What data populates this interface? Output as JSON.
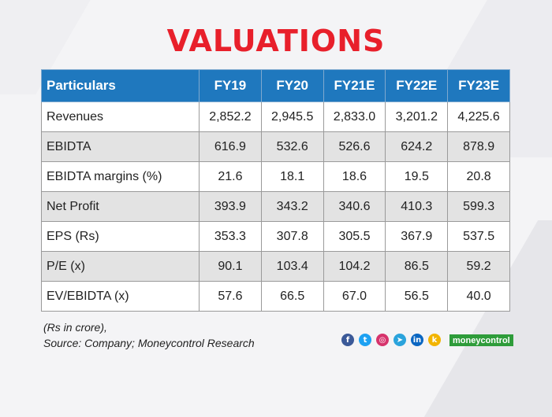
{
  "title": "VALUATIONS",
  "table": {
    "headers": [
      "Particulars",
      "FY19",
      "FY20",
      "FY21E",
      "FY22E",
      "FY23E"
    ],
    "rows": [
      [
        "Revenues",
        "2,852.2",
        "2,945.5",
        "2,833.0",
        "3,201.2",
        "4,225.6"
      ],
      [
        "EBIDTA",
        "616.9",
        "532.6",
        "526.6",
        "624.2",
        "878.9"
      ],
      [
        "EBIDTA margins (%)",
        "21.6",
        "18.1",
        "18.6",
        "19.5",
        "20.8"
      ],
      [
        "Net Profit",
        "393.9",
        "343.2",
        "340.6",
        "410.3",
        "599.3"
      ],
      [
        "EPS (Rs)",
        "353.3",
        "307.8",
        "305.5",
        "367.9",
        "537.5"
      ],
      [
        "P/E (x)",
        "90.1",
        "103.4",
        "104.2",
        "86.5",
        "59.2"
      ],
      [
        "EV/EBIDTA (x)",
        "57.6",
        "66.5",
        "67.0",
        "56.5",
        "40.0"
      ]
    ]
  },
  "notes": {
    "unit": "(Rs in crore),",
    "source": "Source: Company; Moneycontrol Research"
  },
  "social": [
    {
      "name": "facebook-icon",
      "glyph": "f",
      "color": "#3b5998"
    },
    {
      "name": "twitter-icon",
      "glyph": "t",
      "color": "#1da1f2"
    },
    {
      "name": "instagram-icon",
      "glyph": "◎",
      "color": "#d6336c"
    },
    {
      "name": "telegram-icon",
      "glyph": "➤",
      "color": "#2aa3dc"
    },
    {
      "name": "linkedin-icon",
      "glyph": "in",
      "color": "#0a66c2"
    },
    {
      "name": "koo-icon",
      "glyph": "k",
      "color": "#f2b400"
    }
  ],
  "brand": "moneycontrol"
}
